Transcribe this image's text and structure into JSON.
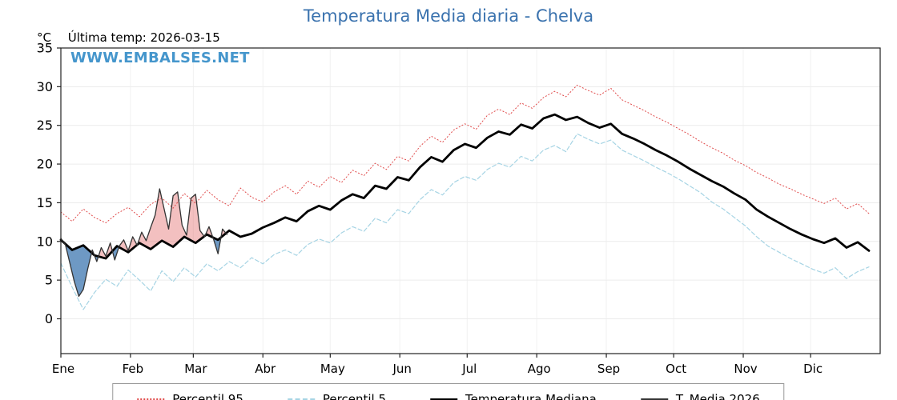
{
  "title": "Temperatura Media diaria - Chelva",
  "header": {
    "y_unit": "°C",
    "last_temp": "Última temp: 2026-03-15"
  },
  "watermark": "WWW.EMBALSES.NET",
  "colors": {
    "title": "#3a72ae",
    "watermark": "#4596cc",
    "percentil95": "#e04b4b",
    "percentil5": "#a6d4e4",
    "mediana": "#000000",
    "t_media_2026": "#333333",
    "fill_above_median": "#e57373",
    "fill_below_median": "#4a7fb5"
  },
  "chart_data": {
    "type": "line",
    "title": "Temperatura Media diaria - Chelva",
    "xlabel": "",
    "ylabel": "°C",
    "ylim": [
      -4.5,
      35
    ],
    "yticks": [
      0,
      5,
      10,
      15,
      20,
      25,
      30,
      35
    ],
    "x_unit": "day_of_year",
    "x_range": [
      0,
      365
    ],
    "grid": true,
    "legend_position": "bottom",
    "months": [
      {
        "label": "Ene",
        "day": 0
      },
      {
        "label": "Feb",
        "day": 31
      },
      {
        "label": "Mar",
        "day": 59
      },
      {
        "label": "Abr",
        "day": 90
      },
      {
        "label": "May",
        "day": 120
      },
      {
        "label": "Jun",
        "day": 151
      },
      {
        "label": "Jul",
        "day": 181
      },
      {
        "label": "Ago",
        "day": 212
      },
      {
        "label": "Sep",
        "day": 243
      },
      {
        "label": "Oct",
        "day": 273
      },
      {
        "label": "Nov",
        "day": 304
      },
      {
        "label": "Dic",
        "day": 334
      }
    ],
    "series": [
      {
        "name": "Percentil 95",
        "color": "#e04b4b",
        "style": "dotted",
        "width": 1,
        "x_start": 0,
        "x_step": 5,
        "values": [
          13.8,
          12.6,
          14.2,
          13.1,
          12.4,
          13.6,
          14.4,
          13.2,
          14.8,
          15.6,
          14.3,
          16.2,
          14.9,
          16.6,
          15.4,
          14.6,
          16.9,
          15.7,
          15.1,
          16.4,
          17.2,
          16.1,
          17.8,
          17.0,
          18.4,
          17.6,
          19.2,
          18.5,
          20.1,
          19.3,
          21.0,
          20.4,
          22.3,
          23.6,
          22.8,
          24.4,
          25.2,
          24.5,
          26.3,
          27.1,
          26.4,
          27.9,
          27.2,
          28.6,
          29.4,
          28.7,
          30.2,
          29.5,
          28.9,
          29.8,
          28.3,
          27.6,
          26.9,
          26.1,
          25.4,
          24.6,
          23.8,
          22.9,
          22.1,
          21.4,
          20.5,
          19.8,
          18.9,
          18.2,
          17.4,
          16.8,
          16.1,
          15.5,
          14.9,
          15.6,
          14.2,
          14.9,
          13.6
        ]
      },
      {
        "name": "Percentil 5",
        "color": "#a6d4e4",
        "style": "dashed",
        "width": 1.2,
        "x_start": 0,
        "x_step": 5,
        "values": [
          7.2,
          4.1,
          1.2,
          3.4,
          5.1,
          4.2,
          6.3,
          5.0,
          3.6,
          6.2,
          4.8,
          6.6,
          5.4,
          7.1,
          6.2,
          7.4,
          6.6,
          7.9,
          7.1,
          8.3,
          8.9,
          8.2,
          9.6,
          10.3,
          9.8,
          11.1,
          11.9,
          11.3,
          13.0,
          12.4,
          14.1,
          13.6,
          15.4,
          16.7,
          16.0,
          17.6,
          18.4,
          17.9,
          19.3,
          20.1,
          19.6,
          21.0,
          20.4,
          21.8,
          22.4,
          21.6,
          23.9,
          23.2,
          22.6,
          23.1,
          21.8,
          21.1,
          20.4,
          19.6,
          18.9,
          18.1,
          17.2,
          16.3,
          15.1,
          14.2,
          13.1,
          12.0,
          10.6,
          9.4,
          8.6,
          7.8,
          7.1,
          6.4,
          5.9,
          6.6,
          5.2,
          6.1,
          6.7
        ]
      },
      {
        "name": "Temperatura Mediana",
        "color": "#000000",
        "style": "solid",
        "width": 2.8,
        "x_start": 0,
        "x_step": 5,
        "values": [
          10.2,
          8.9,
          9.5,
          8.2,
          7.8,
          9.4,
          8.6,
          9.8,
          9.0,
          10.1,
          9.3,
          10.6,
          9.8,
          10.9,
          10.2,
          11.4,
          10.6,
          11.0,
          11.8,
          12.4,
          13.1,
          12.6,
          13.9,
          14.6,
          14.1,
          15.3,
          16.1,
          15.6,
          17.2,
          16.8,
          18.3,
          17.9,
          19.6,
          20.9,
          20.3,
          21.8,
          22.6,
          22.1,
          23.4,
          24.2,
          23.8,
          25.1,
          24.6,
          25.9,
          26.4,
          25.7,
          26.1,
          25.3,
          24.7,
          25.2,
          23.9,
          23.3,
          22.6,
          21.8,
          21.1,
          20.3,
          19.4,
          18.6,
          17.8,
          17.1,
          16.2,
          15.4,
          14.1,
          13.2,
          12.4,
          11.6,
          10.9,
          10.3,
          9.8,
          10.4,
          9.2,
          9.9,
          8.8
        ]
      },
      {
        "name": "T. Media 2026",
        "color": "#333333",
        "style": "solid",
        "width": 1.3,
        "x_start": 0,
        "x_step": 2,
        "fill_vs": "Temperatura Mediana",
        "fill_above_color": "#e57373",
        "fill_below_color": "#4a7fb5",
        "values": [
          10.4,
          9.6,
          7.2,
          4.8,
          2.9,
          3.8,
          6.5,
          8.9,
          7.4,
          9.2,
          8.1,
          9.8,
          7.6,
          9.4,
          10.2,
          8.8,
          10.6,
          9.5,
          11.2,
          10.1,
          11.8,
          13.4,
          16.8,
          14.2,
          11.6,
          15.9,
          16.4,
          12.1,
          10.8,
          15.6,
          16.1,
          11.4,
          10.6,
          11.9,
          10.3,
          8.4,
          11.6,
          10.9
        ]
      }
    ]
  }
}
